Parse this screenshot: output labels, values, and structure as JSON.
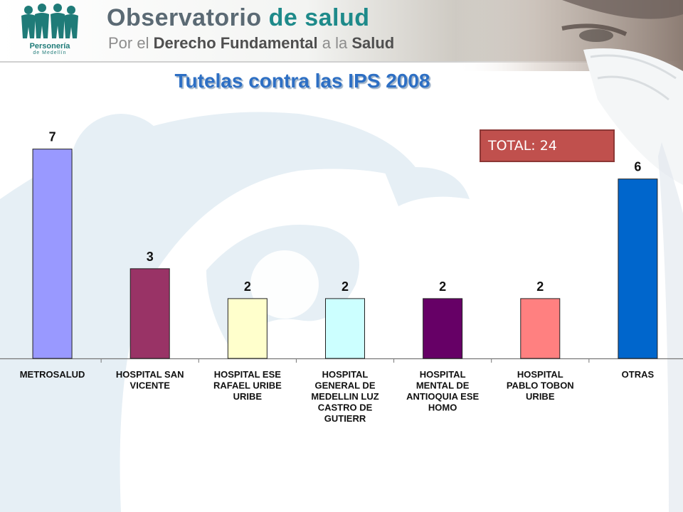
{
  "header": {
    "brand_title_main": "Observatorio ",
    "brand_title_accent": "de salud",
    "brand_sub_part1": "Por el ",
    "brand_sub_part2": "Derecho Fundamental ",
    "brand_sub_part3": "a la ",
    "brand_sub_part4": "Salud",
    "logo_line1": "Personería",
    "logo_line2": "de Medellín"
  },
  "total_label": "TOTAL: 24",
  "colors": {
    "title": "#2d6fc4",
    "total_box": "#c0504d",
    "brand_teal": "#1e8a8a"
  },
  "chart_data": {
    "type": "bar",
    "title": "Tutelas contra las IPS 2008",
    "categories": [
      [
        "METROSALUD"
      ],
      [
        "HOSPITAL SAN",
        "VICENTE"
      ],
      [
        "HOSPITAL ESE",
        "RAFAEL URIBE",
        "URIBE"
      ],
      [
        "HOSPITAL",
        "GENERAL DE",
        "MEDELLIN LUZ",
        "CASTRO DE",
        "GUTIERR"
      ],
      [
        "HOSPITAL",
        "MENTAL DE",
        "ANTIOQUIA ESE",
        "HOMO"
      ],
      [
        "HOSPITAL",
        "PABLO TOBON",
        "URIBE"
      ],
      [
        "OTRAS"
      ]
    ],
    "values": [
      7,
      3,
      2,
      2,
      2,
      2,
      6
    ],
    "bar_colors": [
      "#9999ff",
      "#993366",
      "#ffffcc",
      "#ccffff",
      "#660066",
      "#ff8080",
      "#0066cc"
    ],
    "ylim": [
      0,
      7.8
    ],
    "grid": false,
    "data_labels": true
  }
}
